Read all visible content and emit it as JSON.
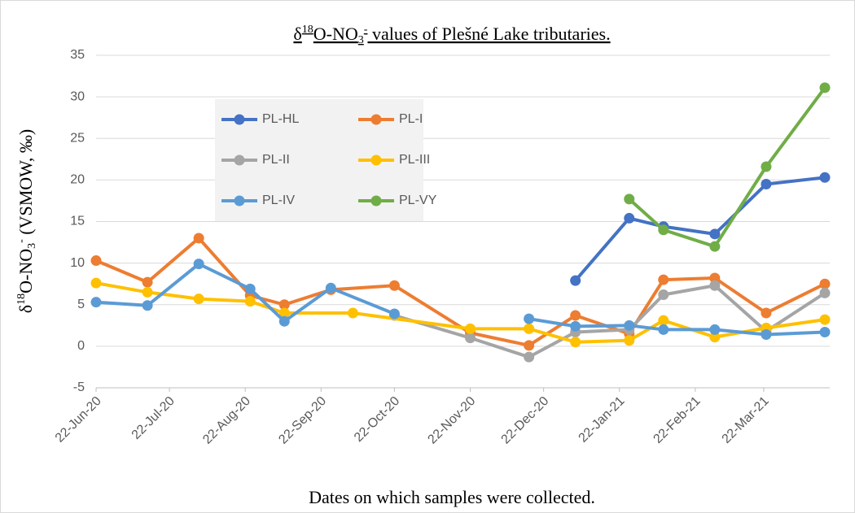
{
  "chart_data": {
    "type": "line",
    "title": [
      "δ",
      "18",
      "O-NO",
      "3",
      "-",
      " values of Plešné Lake tributaries."
    ],
    "y_label": [
      "δ",
      "18",
      "O-NO",
      "3",
      "-",
      " (VSMOW, ‰)"
    ],
    "x_label": "Dates on which samples were collected.",
    "ylim": [
      -5,
      35
    ],
    "yticks": [
      -5,
      0,
      5,
      10,
      15,
      20,
      25,
      30,
      35
    ],
    "grid": true,
    "xlim": [
      "2020-06-22",
      "2021-04-18"
    ],
    "xticks": [
      {
        "value": "2020-06-22",
        "label": "22-Jun-20"
      },
      {
        "value": "2020-07-22",
        "label": "22-Jul-20"
      },
      {
        "value": "2020-08-22",
        "label": "22-Aug-20"
      },
      {
        "value": "2020-09-22",
        "label": "22-Sep-20"
      },
      {
        "value": "2020-10-22",
        "label": "22-Oct-20"
      },
      {
        "value": "2020-11-22",
        "label": "22-Nov-20"
      },
      {
        "value": "2020-12-22",
        "label": "22-Dec-20"
      },
      {
        "value": "2021-01-22",
        "label": "22-Jan-21"
      },
      {
        "value": "2021-02-22",
        "label": "22-Feb-21"
      },
      {
        "value": "2021-03-22",
        "label": "22-Mar-21"
      }
    ],
    "legend": "upper left",
    "series": [
      {
        "name": "PL-HL",
        "color": "#4472c4",
        "x": [
          "2021-01-04",
          "2021-01-26",
          "2021-02-09",
          "2021-03-02",
          "2021-03-23",
          "2021-04-16"
        ],
        "values": [
          7.9,
          15.4,
          14.4,
          13.5,
          19.5,
          20.3
        ]
      },
      {
        "name": "PL-I",
        "color": "#ed7d31",
        "x": [
          "2020-06-22",
          "2020-07-13",
          "2020-08-03",
          "2020-08-24",
          "2020-09-07",
          "2020-09-26",
          "2020-10-22",
          "2020-11-22",
          "2020-12-16",
          "2021-01-04",
          "2021-01-26",
          "2021-02-09",
          "2021-03-02",
          "2021-03-23",
          "2021-04-16"
        ],
        "values": [
          10.3,
          7.7,
          13.0,
          6.1,
          5.0,
          6.8,
          7.3,
          1.6,
          0.1,
          3.7,
          1.5,
          8.0,
          8.2,
          4.0,
          7.5
        ]
      },
      {
        "name": "PL-II",
        "color": "#a5a5a5",
        "x": [
          "2020-10-22",
          "2020-11-22",
          "2020-12-16",
          "2021-01-04",
          "2021-01-26",
          "2021-02-09",
          "2021-03-02",
          "2021-03-23",
          "2021-04-16"
        ],
        "values": [
          3.7,
          1.0,
          -1.3,
          1.7,
          2.0,
          6.2,
          7.3,
          1.8,
          6.4
        ]
      },
      {
        "name": "PL-III",
        "color": "#ffc000",
        "x": [
          "2020-06-22",
          "2020-07-13",
          "2020-08-03",
          "2020-08-24",
          "2020-09-07",
          "2020-10-05",
          "2020-11-22",
          "2020-12-16",
          "2021-01-04",
          "2021-01-26",
          "2021-02-09",
          "2021-03-02",
          "2021-03-23",
          "2021-04-16"
        ],
        "values": [
          7.6,
          6.5,
          5.7,
          5.4,
          4.0,
          4.0,
          2.1,
          2.1,
          0.5,
          0.7,
          3.1,
          1.1,
          2.2,
          3.2
        ]
      },
      {
        "name": "PL-IV",
        "color": "#5b9bd5",
        "x": [
          "2020-06-22",
          "2020-07-13",
          "2020-08-03",
          "2020-08-24",
          "2020-09-07",
          "2020-09-26",
          "2020-10-22",
          "2020-11-22",
          "2020-12-16",
          "2021-01-04",
          "2021-01-26",
          "2021-02-09",
          "2021-03-02",
          "2021-03-23",
          "2021-04-16"
        ],
        "values": [
          5.3,
          4.9,
          9.9,
          6.9,
          3.0,
          7.0,
          3.9,
          null,
          3.3,
          2.4,
          2.5,
          2.0,
          2.0,
          1.4,
          1.7
        ]
      },
      {
        "name": "PL-VY",
        "color": "#70ad47",
        "x": [
          "2021-01-26",
          "2021-02-09",
          "2021-03-02",
          "2021-03-23",
          "2021-04-16"
        ],
        "values": [
          17.7,
          14.0,
          12.0,
          21.6,
          31.1
        ]
      }
    ]
  }
}
